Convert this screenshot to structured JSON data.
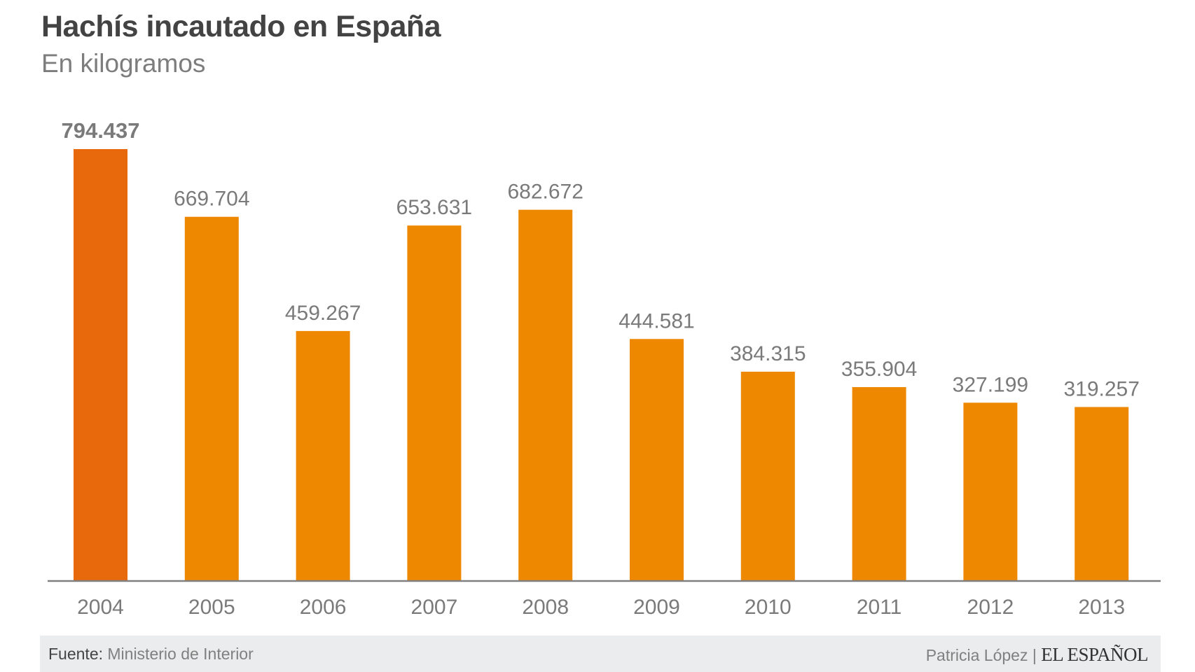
{
  "chart_data": {
    "type": "bar",
    "title": "Hachís incautado en España",
    "subtitle": "En kilogramos",
    "categories": [
      "2004",
      "2005",
      "2006",
      "2007",
      "2008",
      "2009",
      "2010",
      "2011",
      "2012",
      "2013"
    ],
    "values": [
      794437,
      669704,
      459267,
      653631,
      682672,
      444581,
      384315,
      355904,
      327199,
      319257
    ],
    "value_labels": [
      "794.437",
      "669.704",
      "459.267",
      "653.631",
      "682.672",
      "444.581",
      "384.315",
      "355.904",
      "327.199",
      "319.257"
    ],
    "highlight_index": 0,
    "ylim": [
      0,
      794437
    ],
    "grid": false,
    "legend": "none",
    "colors": {
      "highlight": "#E8690B",
      "bar": "#EE8800",
      "axis": "#808080",
      "label": "#7a7a7a"
    }
  },
  "footer": {
    "source_label": "Fuente:",
    "source_value": "Ministerio de Interior",
    "author": "Patricia López |",
    "brand": "EL ESPAÑOL"
  }
}
